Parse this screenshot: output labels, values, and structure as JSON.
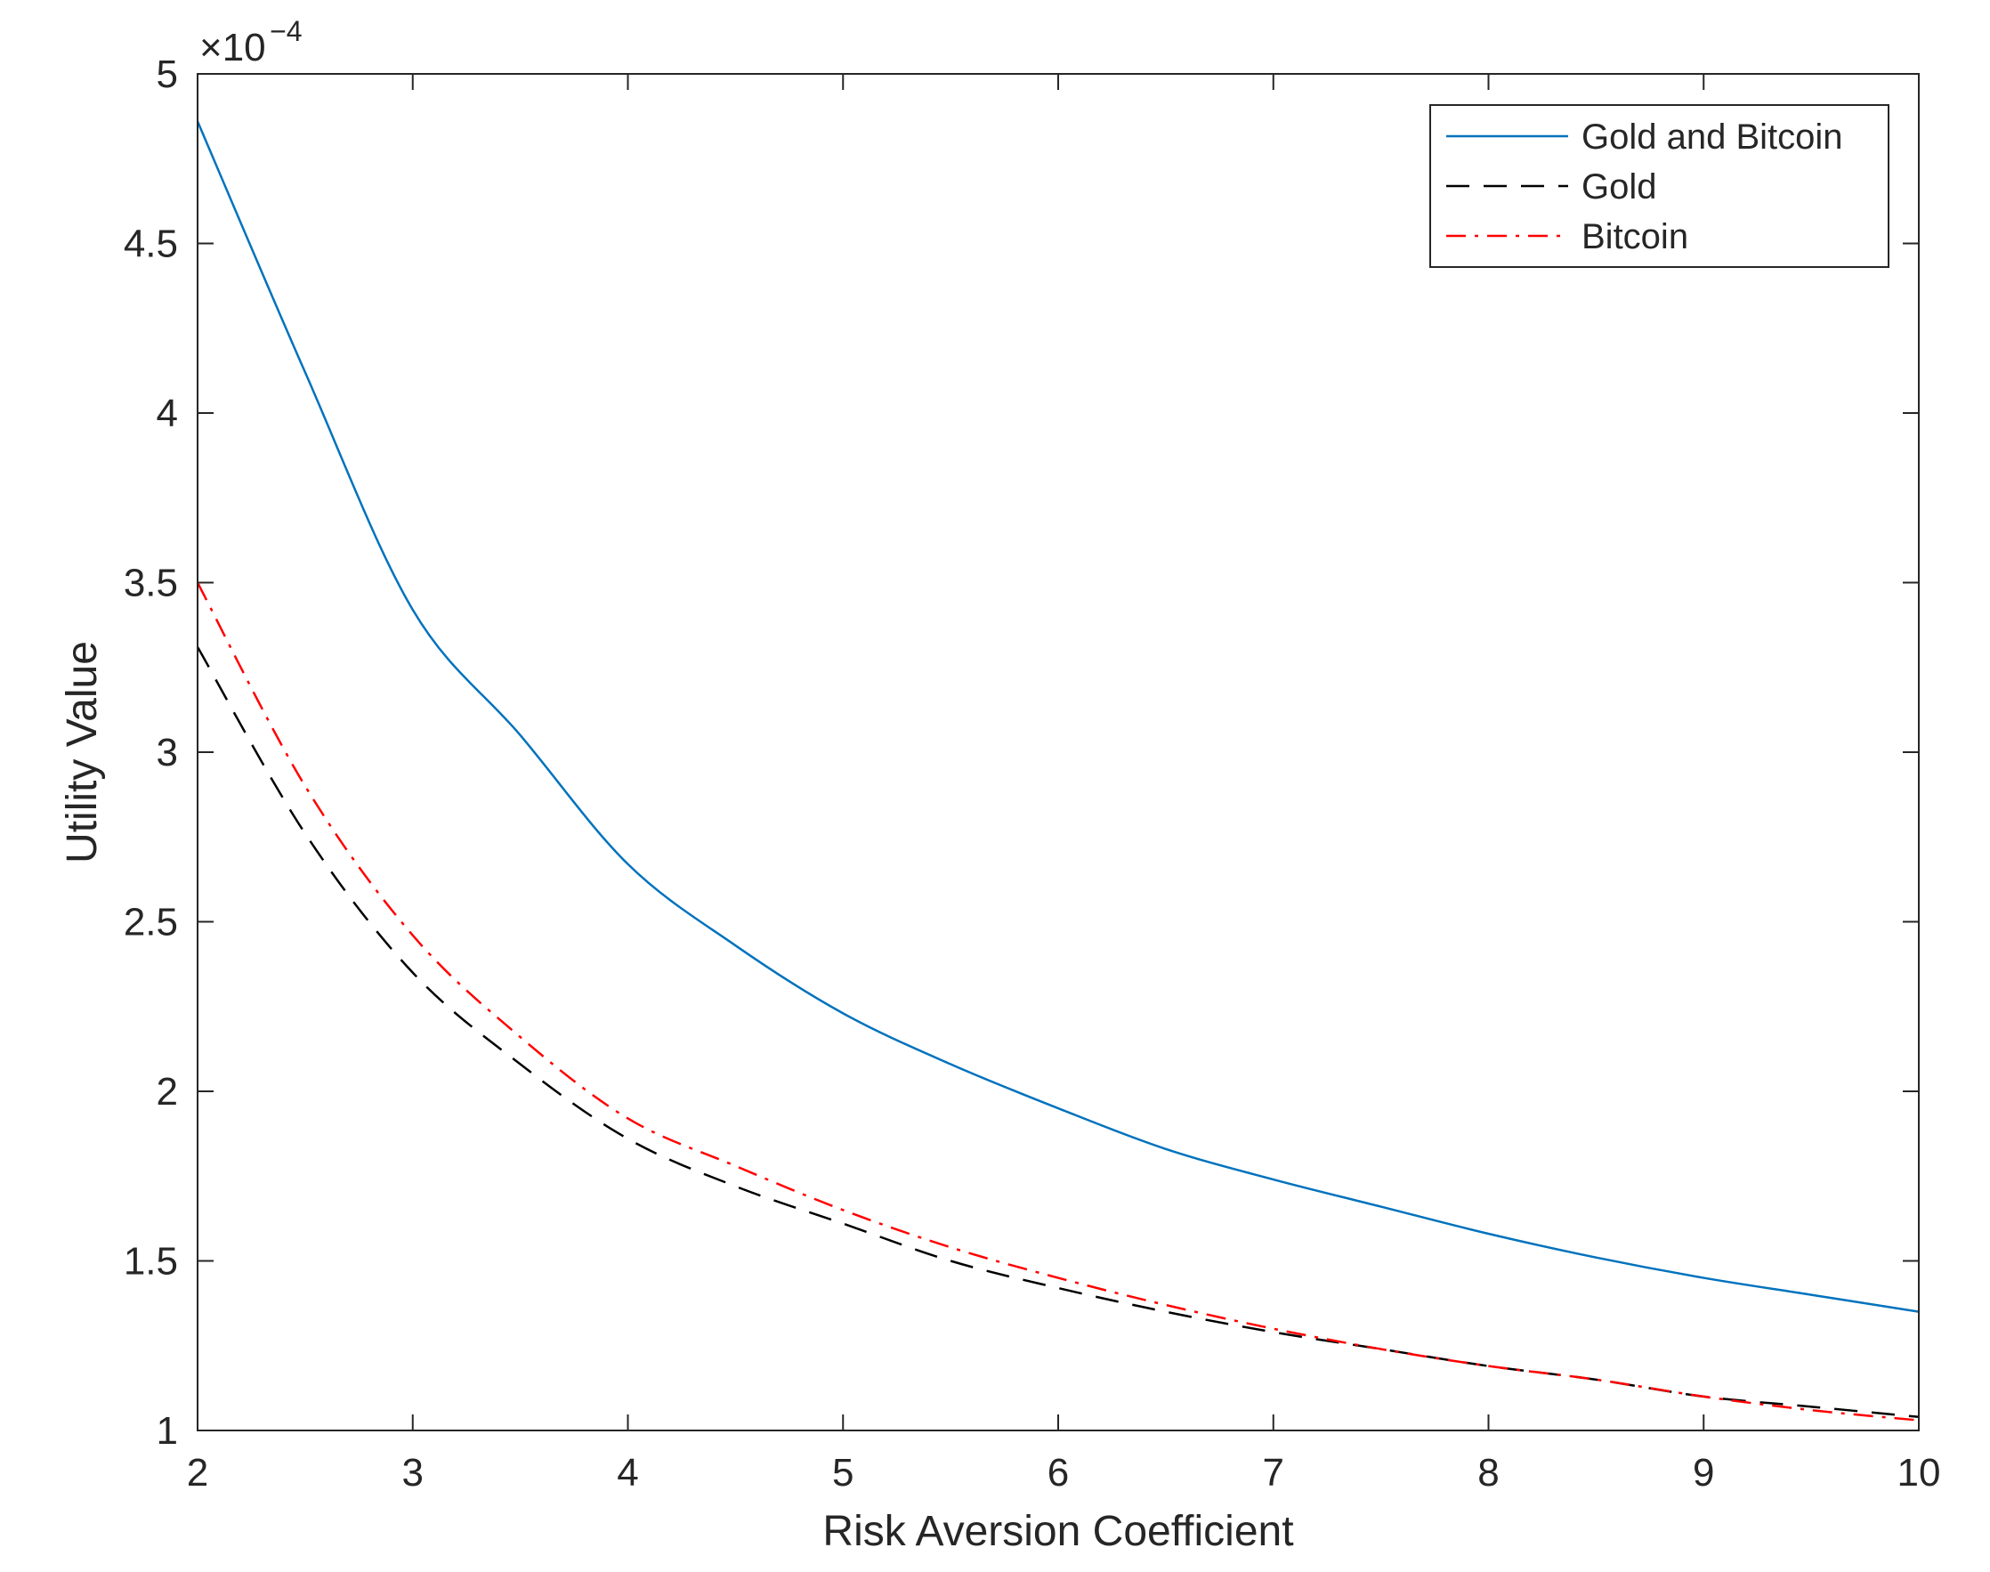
{
  "chart_data": {
    "type": "line",
    "xlabel": "Risk Aversion Coefficient",
    "ylabel": "Utility Value",
    "y_exponent_label": {
      "base": "×10",
      "exponent": "−4"
    },
    "xlim": [
      2,
      10
    ],
    "ylim": [
      1,
      5
    ],
    "xticks": [
      2,
      3,
      4,
      5,
      6,
      7,
      8,
      9,
      10
    ],
    "yticks": [
      1,
      1.5,
      2,
      2.5,
      3,
      3.5,
      4,
      4.5,
      5
    ],
    "ytick_labels": [
      "1",
      "1.5",
      "2",
      "2.5",
      "3",
      "3.5",
      "4",
      "4.5",
      "5"
    ],
    "grid": false,
    "legend_position": "top-right",
    "x": [
      2,
      2.5,
      3,
      3.5,
      4,
      4.5,
      5,
      5.5,
      6,
      6.5,
      7,
      7.5,
      8,
      8.5,
      9,
      9.5,
      10
    ],
    "series": [
      {
        "name": "Gold and Bitcoin",
        "color": "#0072BD",
        "style": "solid",
        "values": [
          4.86,
          4.12,
          3.42,
          3.05,
          2.67,
          2.43,
          2.23,
          2.08,
          1.95,
          1.83,
          1.74,
          1.66,
          1.58,
          1.51,
          1.45,
          1.4,
          1.35
        ]
      },
      {
        "name": "Gold",
        "color": "#000000",
        "style": "dashed",
        "values": [
          3.31,
          2.76,
          2.35,
          2.08,
          1.86,
          1.72,
          1.61,
          1.5,
          1.42,
          1.35,
          1.29,
          1.24,
          1.19,
          1.15,
          1.1,
          1.07,
          1.04
        ]
      },
      {
        "name": "Bitcoin",
        "color": "#FF0000",
        "style": "dashdot",
        "values": [
          3.5,
          2.9,
          2.46,
          2.16,
          1.92,
          1.78,
          1.65,
          1.54,
          1.45,
          1.37,
          1.3,
          1.24,
          1.19,
          1.15,
          1.1,
          1.06,
          1.03
        ]
      }
    ]
  }
}
